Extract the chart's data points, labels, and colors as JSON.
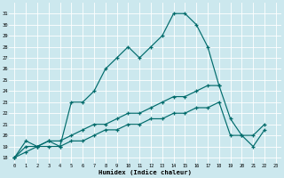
{
  "xlabel": "Humidex (Indice chaleur)",
  "x_values": [
    0,
    1,
    2,
    3,
    4,
    5,
    6,
    7,
    8,
    9,
    10,
    11,
    12,
    13,
    14,
    15,
    16,
    17,
    18,
    19,
    20,
    21,
    22,
    23
  ],
  "line1": [
    18.0,
    19.5,
    19.0,
    19.5,
    19.0,
    23.0,
    23.0,
    24.0,
    26.0,
    27.0,
    28.0,
    27.0,
    28.0,
    29.0,
    31.0,
    31.0,
    30.0,
    28.0,
    24.5,
    null,
    null,
    null,
    null,
    null
  ],
  "line3": [
    18.0,
    19.0,
    19.0,
    19.5,
    19.5,
    20.0,
    20.5,
    21.0,
    21.0,
    21.5,
    22.0,
    22.0,
    22.5,
    23.0,
    23.5,
    23.5,
    24.0,
    24.5,
    24.5,
    21.5,
    20.0,
    19.0,
    20.5,
    null
  ],
  "line4": [
    18.0,
    18.5,
    19.0,
    19.0,
    19.0,
    19.5,
    19.5,
    20.0,
    20.5,
    20.5,
    21.0,
    21.0,
    21.5,
    21.5,
    22.0,
    22.0,
    22.5,
    22.5,
    23.0,
    20.0,
    20.0,
    20.0,
    21.0,
    null
  ],
  "bg_color": "#cce8ee",
  "grid_color": "#ffffff",
  "line_color": "#006b6b",
  "ylim": [
    17.5,
    32.0
  ],
  "xlim": [
    -0.5,
    23.5
  ],
  "yticks": [
    18,
    19,
    20,
    21,
    22,
    23,
    24,
    25,
    26,
    27,
    28,
    29,
    30,
    31
  ],
  "xticks": [
    0,
    1,
    2,
    3,
    4,
    5,
    6,
    7,
    8,
    9,
    10,
    11,
    12,
    13,
    14,
    15,
    16,
    17,
    18,
    19,
    20,
    21,
    22,
    23
  ]
}
